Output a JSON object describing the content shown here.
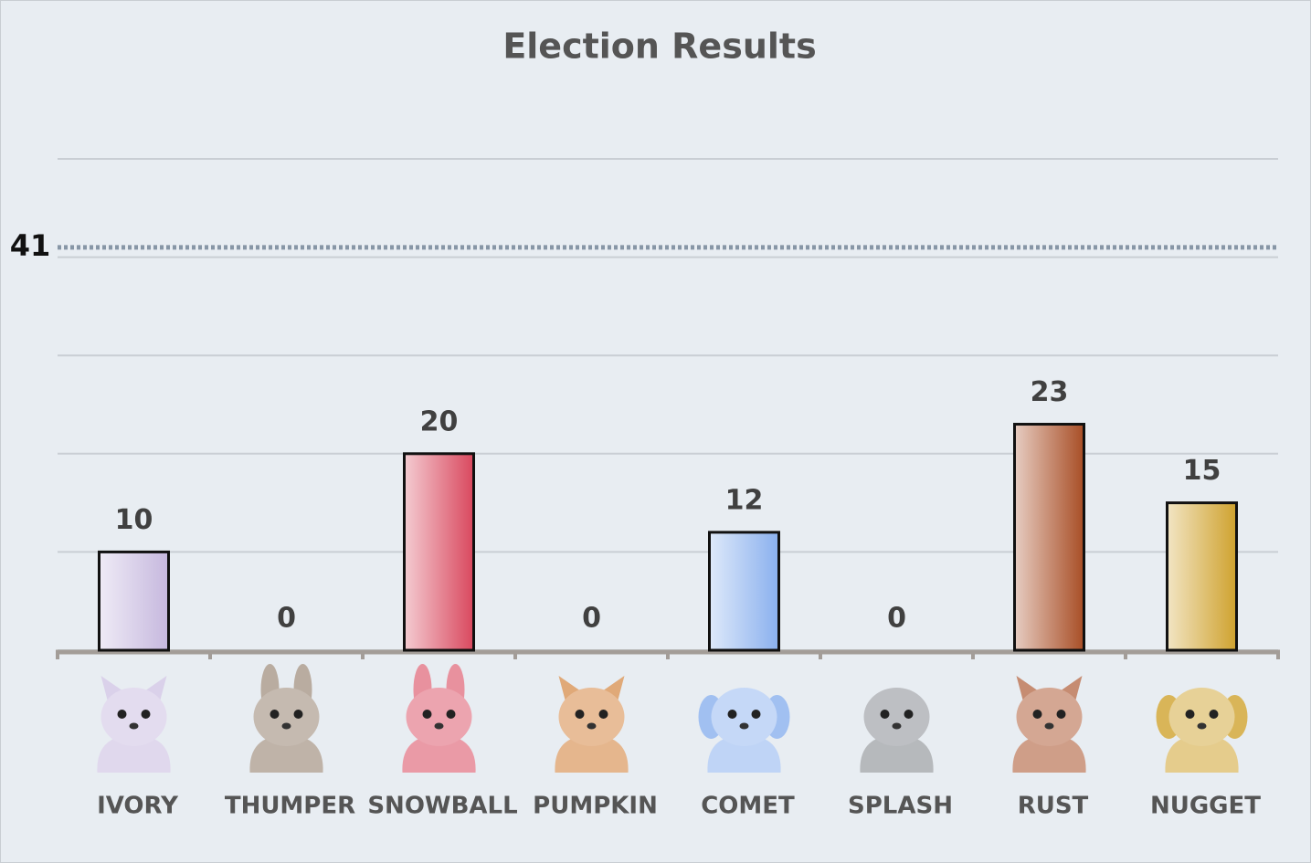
{
  "chart_data": {
    "type": "bar",
    "title": "Election Results",
    "categories": [
      "IVORY",
      "THUMPER",
      "SNOWBALL",
      "PUMPKIN",
      "COMET",
      "SPLASH",
      "RUST",
      "NUGGET"
    ],
    "values": [
      10,
      0,
      20,
      0,
      12,
      0,
      23,
      15
    ],
    "colors": [
      "#c6b8de",
      "#8a7560",
      "#d9485e",
      "#d07a30",
      "#8ab0ee",
      "#7a7f86",
      "#a84e26",
      "#cfa22e"
    ],
    "ylim": [
      0,
      50
    ],
    "yticks": [
      0,
      10,
      20,
      30,
      40,
      50
    ],
    "grid": true,
    "reference_line": {
      "value": 41
    }
  }
}
